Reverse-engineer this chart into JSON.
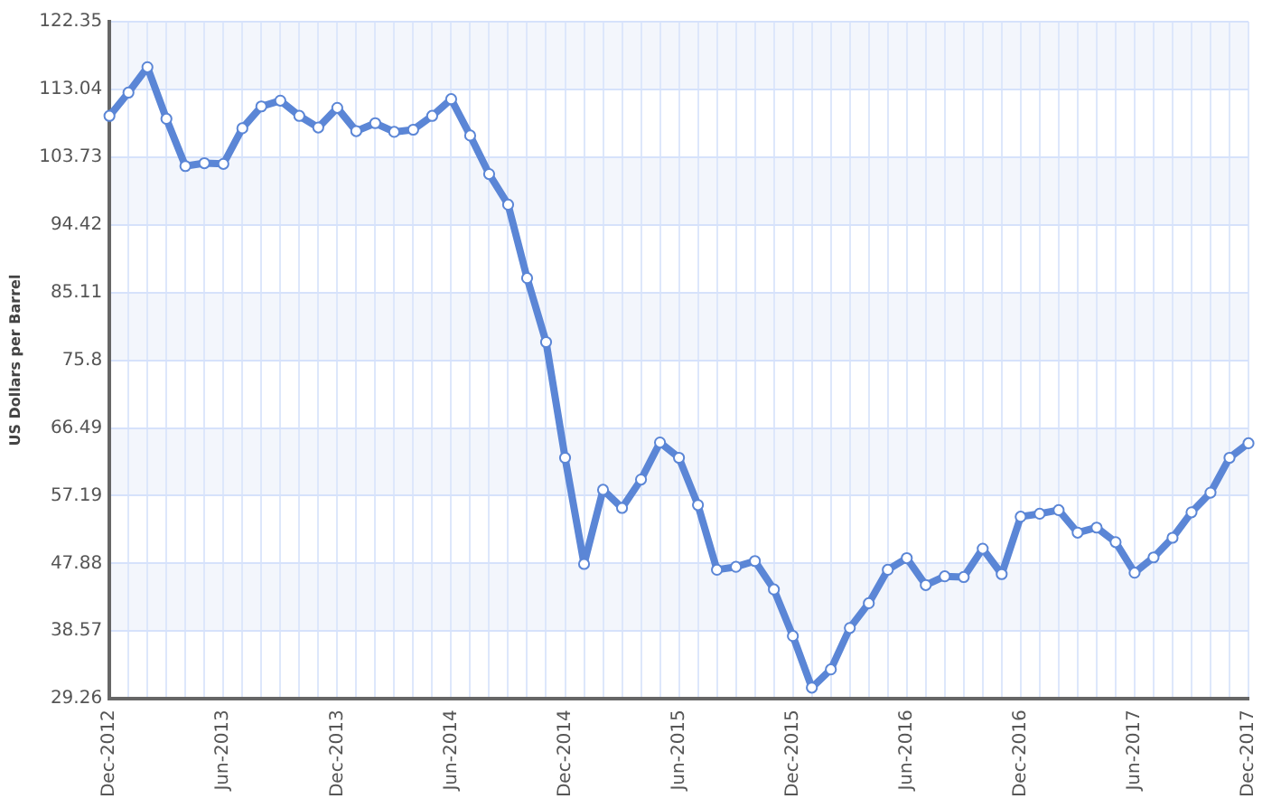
{
  "chart_data": {
    "type": "line",
    "ylabel": "US Dollars per Barrel",
    "categories": [
      "Dec-2012",
      null,
      null,
      null,
      null,
      null,
      "Jun-2013",
      null,
      null,
      null,
      null,
      null,
      "Dec-2013",
      null,
      null,
      null,
      null,
      null,
      "Jun-2014",
      null,
      null,
      null,
      null,
      null,
      "Dec-2014",
      null,
      null,
      null,
      null,
      null,
      "Jun-2015",
      null,
      null,
      null,
      null,
      null,
      "Dec-2015",
      null,
      null,
      null,
      null,
      null,
      "Jun-2016",
      null,
      null,
      null,
      null,
      null,
      "Dec-2016",
      null,
      null,
      null,
      null,
      null,
      "Jun-2017",
      null,
      null,
      null,
      null,
      null,
      "Dec-2017"
    ],
    "series": [
      {
        "color": "#5b86d6",
        "values": [
          109.4,
          112.6,
          116.1,
          109.0,
          102.5,
          102.9,
          102.8,
          107.7,
          110.7,
          111.5,
          109.4,
          107.8,
          110.5,
          107.3,
          108.4,
          107.2,
          107.5,
          109.4,
          111.7,
          106.7,
          101.4,
          97.2,
          87.1,
          78.3,
          62.4,
          47.8,
          58.0,
          55.5,
          59.4,
          64.5,
          62.4,
          55.9,
          47.0,
          47.4,
          48.2,
          44.3,
          37.9,
          30.8,
          33.3,
          39.0,
          42.4,
          47.0,
          48.6,
          44.9,
          46.1,
          46.0,
          49.9,
          46.4,
          54.3,
          54.7,
          55.2,
          52.1,
          52.8,
          50.8,
          46.6,
          48.7,
          51.4,
          54.9,
          57.6,
          62.4,
          64.4
        ]
      }
    ],
    "ylim": [
      29.26,
      122.35
    ],
    "yticks": [
      29.26,
      38.57,
      47.88,
      57.19,
      66.49,
      75.8,
      85.11,
      94.42,
      103.73,
      113.04,
      122.35
    ],
    "grid": true,
    "legend": false,
    "marker": "circle",
    "line_style": "solid"
  }
}
